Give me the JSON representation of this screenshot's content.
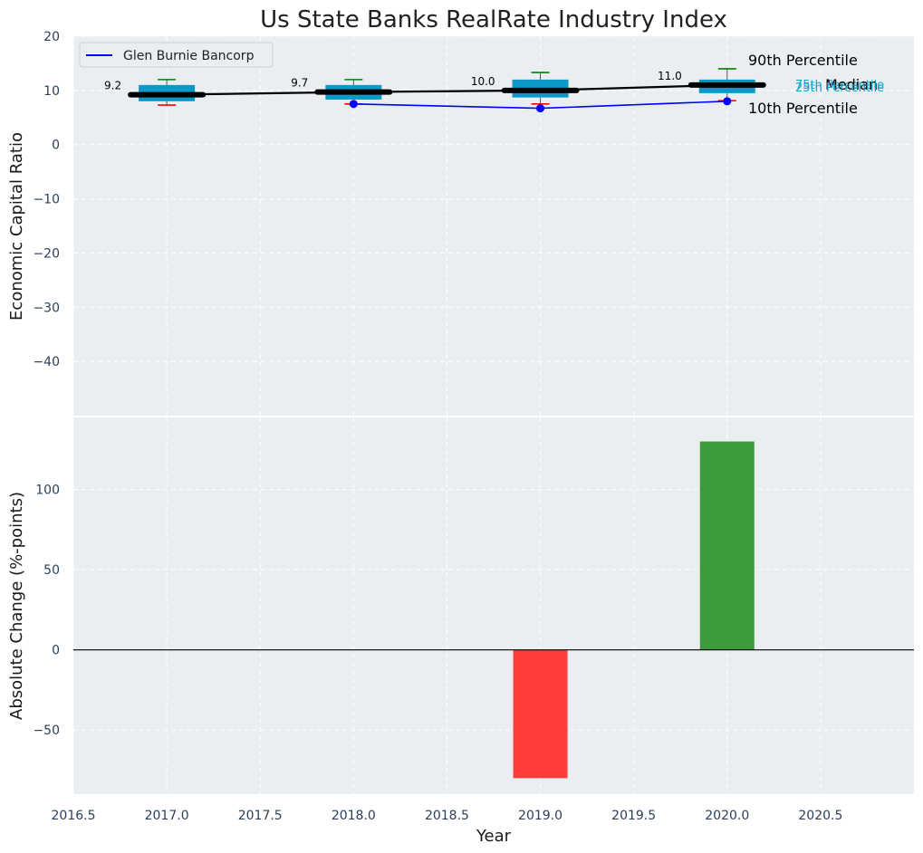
{
  "chart_data": {
    "type": "box+line+bar",
    "title": "Us State Banks RealRate Industry Index",
    "xlabel": "Year",
    "x_ticks": [
      "2016.5",
      "2017.0",
      "2017.5",
      "2018.0",
      "2018.5",
      "2019.0",
      "2019.5",
      "2020.0",
      "2020.5"
    ],
    "xlim": [
      2016.5,
      2021.0
    ],
    "grid": true,
    "top": {
      "ylabel": "Economic Capital Ratio",
      "ylim": [
        -50,
        20
      ],
      "y_ticks": [
        "20",
        "10",
        "0",
        "−10",
        "−20",
        "−30",
        "−40"
      ],
      "legend": {
        "placement": "top-left",
        "entries": [
          "Glen Burnie Bancorp"
        ]
      },
      "boxes": [
        {
          "x": 2017,
          "p10": 7.3,
          "p25": 8.0,
          "median": 9.2,
          "p75": 11.0,
          "p90": 12.0
        },
        {
          "x": 2018,
          "p10": 7.5,
          "p25": 8.3,
          "median": 9.7,
          "p75": 11.0,
          "p90": 12.0
        },
        {
          "x": 2019,
          "p10": 7.5,
          "p25": 8.7,
          "median": 10.0,
          "p75": 12.0,
          "p90": 13.3
        },
        {
          "x": 2020,
          "p10": 8.1,
          "p25": 9.5,
          "median": 11.0,
          "p75": 12.0,
          "p90": 14.0
        }
      ],
      "median_line": {
        "x": [
          2017,
          2018,
          2019,
          2020
        ],
        "values": [
          9.2,
          9.7,
          10.0,
          11.0
        ]
      },
      "median_labels": [
        "9.2",
        "9.7",
        "10.0",
        "11.0"
      ],
      "series": [
        {
          "name": "Glen Burnie Bancorp",
          "x": [
            2018,
            2019,
            2020
          ],
          "values": [
            7.5,
            6.7,
            8.0
          ]
        }
      ],
      "annotations": [
        "90th Percentile",
        "75th Percentile",
        "Median",
        "25th Percentile",
        "10th Percentile"
      ]
    },
    "bottom": {
      "type": "bar",
      "ylabel": "Absolute Change (%-points)",
      "ylim": [
        -90,
        145
      ],
      "y_ticks": [
        "100",
        "50",
        "0",
        "−50"
      ],
      "x": [
        2019,
        2020
      ],
      "values": [
        -80,
        130
      ]
    },
    "colors": {
      "box": "#0b9ac8",
      "median": "#000000",
      "company": "#0000ff",
      "whisker_high": "#008000",
      "whisker_low": "#ff0000",
      "bar_negative": "#ff3c3c",
      "bar_positive": "#3c9c3c",
      "panel_bg": "#eaeef0",
      "grid": "#ffffff"
    }
  }
}
